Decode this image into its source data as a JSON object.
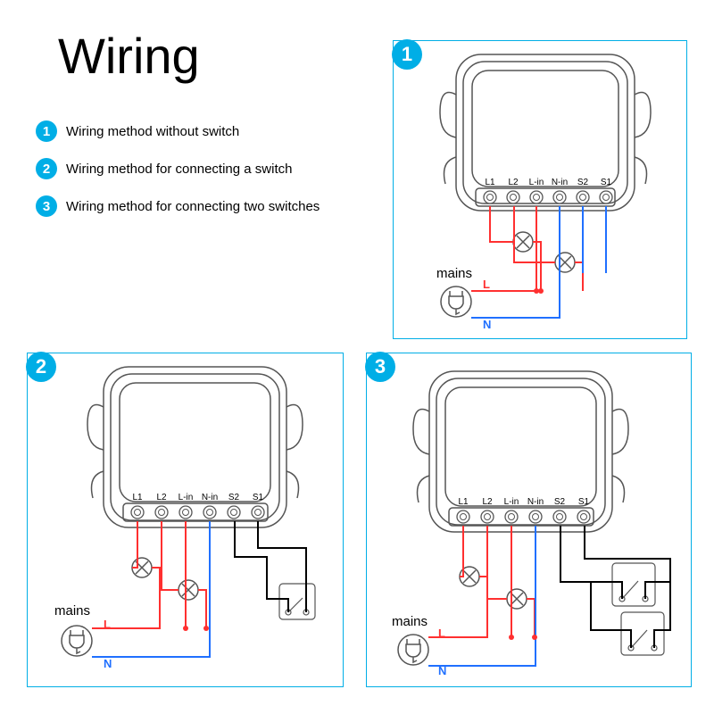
{
  "title": "Wiring",
  "legend": [
    {
      "num": "1",
      "text": "Wiring method without switch"
    },
    {
      "num": "2",
      "text": "Wiring method for connecting a switch"
    },
    {
      "num": "3",
      "text": "Wiring method for connecting two switches"
    }
  ],
  "terminals": [
    "L1",
    "L2",
    "L-in",
    "N-in",
    "S2",
    "S1"
  ],
  "wireLabels": {
    "live": "L",
    "neutral": "N"
  },
  "mainsLabel": "mains",
  "colors": {
    "accent": "#00aee6",
    "live": "#ff3030",
    "neutral": "#2070ff",
    "device": "#555"
  },
  "panels": [
    {
      "id": "1"
    },
    {
      "id": "2"
    },
    {
      "id": "3"
    }
  ]
}
